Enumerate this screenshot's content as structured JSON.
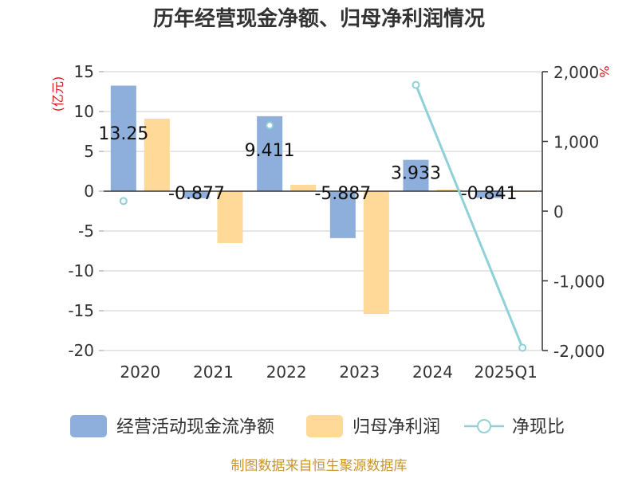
{
  "chart_data": {
    "type": "bar+line",
    "title": "历年经营现金净额、归母净利润情况",
    "categories": [
      "2020",
      "2021",
      "2022",
      "2023",
      "2024",
      "2025Q1"
    ],
    "series": [
      {
        "name": "经营活动现金流净额",
        "type": "bar",
        "axis": "left",
        "color": "#8eaedc",
        "values": [
          13.25,
          -0.877,
          9.411,
          -5.887,
          3.933,
          -0.841
        ],
        "labels": [
          "13.25",
          "-0.877",
          "9.411",
          "-5.887",
          "3.933",
          "-0.841"
        ]
      },
      {
        "name": "归母净利润",
        "type": "bar",
        "axis": "left",
        "color": "#fed998",
        "values": [
          9.1,
          -6.5,
          0.8,
          -15.4,
          0.2,
          -0.05
        ]
      },
      {
        "name": "净现比",
        "type": "line",
        "axis": "right",
        "color": "#8fd1d8",
        "values": [
          145,
          null,
          1230,
          null,
          1810,
          -1960
        ]
      }
    ],
    "left_axis": {
      "unit": "(亿元)",
      "min": -20,
      "max": 15,
      "ticks": [
        15,
        10,
        5,
        0,
        -5,
        -10,
        -15,
        -20
      ],
      "tick_labels": [
        "15",
        "10",
        "5",
        "0",
        "-5",
        "-10",
        "-15",
        "-20"
      ]
    },
    "right_axis": {
      "unit": "%",
      "min": -2000,
      "max": 2000,
      "ticks": [
        2000,
        1000,
        0,
        -1000,
        -2000
      ],
      "tick_labels": [
        "2,000",
        "1,000",
        "0",
        "-1,000",
        "-2,000"
      ]
    },
    "grid": true,
    "legend_position": "bottom",
    "source": "制图数据来自恒生聚源数据库"
  }
}
